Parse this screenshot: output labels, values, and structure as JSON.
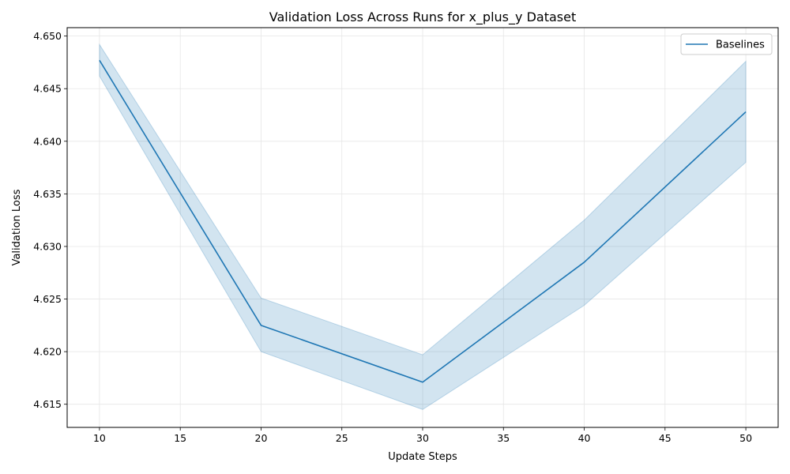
{
  "chart_data": {
    "type": "line",
    "title": "Validation Loss Across Runs for x_plus_y Dataset",
    "xlabel": "Update Steps",
    "ylabel": "Validation Loss",
    "xlim": [
      8,
      52
    ],
    "ylim": [
      4.6128,
      4.6508
    ],
    "xticks": [
      10,
      15,
      20,
      25,
      30,
      35,
      40,
      45,
      50
    ],
    "yticks": [
      4.615,
      4.62,
      4.625,
      4.63,
      4.635,
      4.64,
      4.645,
      4.65
    ],
    "ytick_labels": [
      "4.615",
      "4.620",
      "4.625",
      "4.630",
      "4.635",
      "4.640",
      "4.645",
      "4.650"
    ],
    "grid": true,
    "legend_position": "top-right",
    "series": [
      {
        "name": "Baselines",
        "color": "#1f77b4",
        "x": [
          10,
          20,
          30,
          40,
          50
        ],
        "y": [
          4.6477,
          4.6225,
          4.6171,
          4.6285,
          4.6428
        ],
        "lower": [
          4.6462,
          4.62,
          4.6145,
          4.6244,
          4.638
        ],
        "upper": [
          4.6492,
          4.6251,
          4.6197,
          4.6325,
          4.6476
        ]
      }
    ]
  }
}
